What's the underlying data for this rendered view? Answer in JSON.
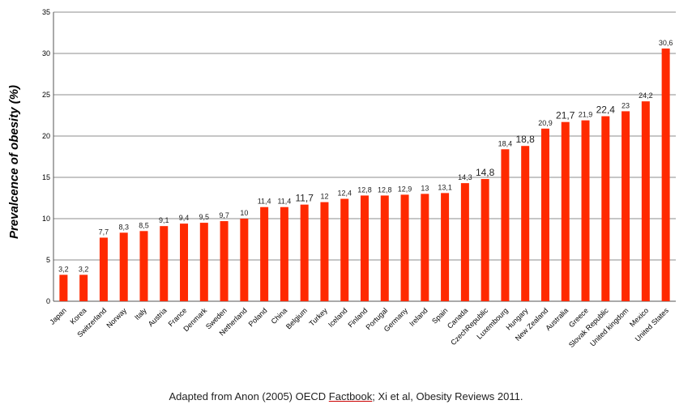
{
  "chart_data": {
    "type": "bar",
    "ylabel": "Prevalcence of obesity (%)",
    "ylim": [
      0,
      35
    ],
    "yticks": [
      "0",
      "5",
      "10",
      "15",
      "20",
      "25",
      "30",
      "35"
    ],
    "grid": true,
    "bar_color": "#ff2a00",
    "categories": [
      "Japan",
      "Korea",
      "Switzerland",
      "Norway",
      "Italy",
      "Austria",
      "France",
      "Denmark",
      "Sweden",
      "Netherland",
      "Poland",
      "China",
      "Belgium",
      "Turkey",
      "Iceland",
      "Finland",
      "Portugal",
      "Germany",
      "Ireland",
      "Spain",
      "Canada",
      "CzechRepublic",
      "Luxembourg",
      "Hungary",
      "New Zealand",
      "Australia",
      "Greece",
      "Slovak Republic",
      "United kingdom",
      "Mexico",
      "United States"
    ],
    "values": [
      3.2,
      3.2,
      7.7,
      8.3,
      8.5,
      9.1,
      9.4,
      9.5,
      9.7,
      10,
      11.4,
      11.4,
      11.7,
      12,
      12.4,
      12.8,
      12.8,
      12.9,
      13,
      13.1,
      14.3,
      14.8,
      18.4,
      18.8,
      20.9,
      21.7,
      21.9,
      22.4,
      23,
      24.2,
      30.6
    ],
    "data_labels": [
      "3,2",
      "3,2",
      "7,7",
      "8,3",
      "8,5",
      "9,1",
      "9,4",
      "9,5",
      "9,7",
      "10",
      "11,4",
      "11,4",
      "11,7",
      "12",
      "12,4",
      "12,8",
      "12,8",
      "12,9",
      "13",
      "13,1",
      "14,3",
      "14,8",
      "18,4",
      "18,8",
      "20,9",
      "21,7",
      "21,9",
      "22,4",
      "23",
      "24,2",
      "30,6"
    ]
  },
  "caption": {
    "before": "Adapted from Anon (2005) OECD ",
    "underlined": "Factbook",
    "after": "; Xi et al, Obesity Reviews 2011."
  }
}
